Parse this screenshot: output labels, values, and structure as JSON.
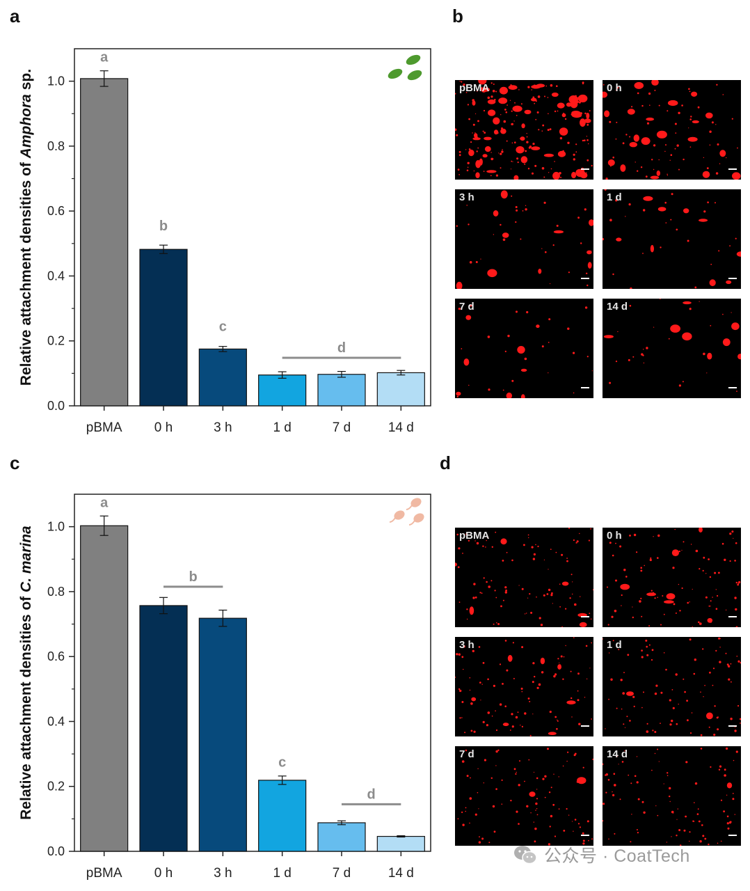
{
  "panels": {
    "a": "a",
    "b": "b",
    "c": "c",
    "d": "d"
  },
  "colors": {
    "pBMA": "#808080",
    "0 h": "#042f54",
    "3 h": "#074a7c",
    "1 d": "#12a5e0",
    "7 d": "#66bdee",
    "14 d": "#b3ddf5",
    "sig_label": "#8c8c8c",
    "cell_red": "#ff1a1a"
  },
  "chart_data": [
    {
      "type": "bar",
      "panel": "a",
      "categories": [
        "pBMA",
        "0 h",
        "3 h",
        "1 d",
        "7 d",
        "14 d"
      ],
      "values": [
        1.008,
        0.482,
        0.175,
        0.095,
        0.097,
        0.102
      ],
      "errors": [
        0.024,
        0.013,
        0.008,
        0.01,
        0.009,
        0.007
      ],
      "ylabel_prefix": "Relative attachment densities of ",
      "ylabel_species": "Amphora",
      "ylabel_suffix": " sp.",
      "ylim": [
        0,
        1.1
      ],
      "yticks": [
        "0.0",
        "0.2",
        "0.4",
        "0.6",
        "0.8",
        "1.0"
      ],
      "significance": [
        {
          "label": "a",
          "bars": [
            0
          ],
          "y": 1.06,
          "line": false
        },
        {
          "label": "b",
          "bars": [
            1
          ],
          "y": 0.54,
          "line": false
        },
        {
          "label": "c",
          "bars": [
            2
          ],
          "y": 0.23,
          "line": false
        },
        {
          "label": "d",
          "bars": [
            3,
            5
          ],
          "y": 0.148,
          "line": true
        }
      ],
      "icon": "diatom-icon"
    },
    {
      "type": "bar",
      "panel": "c",
      "categories": [
        "pBMA",
        "0 h",
        "3 h",
        "1 d",
        "7 d",
        "14 d"
      ],
      "values": [
        1.003,
        0.757,
        0.718,
        0.219,
        0.088,
        0.046
      ],
      "errors": [
        0.03,
        0.025,
        0.025,
        0.013,
        0.006,
        0.002
      ],
      "ylabel_prefix": "Relative attachment densities of ",
      "ylabel_species": "C. marina",
      "ylabel_suffix": "",
      "ylim": [
        0,
        1.1
      ],
      "yticks": [
        "0.0",
        "0.2",
        "0.4",
        "0.6",
        "0.8",
        "1.0"
      ],
      "significance": [
        {
          "label": "a",
          "bars": [
            0
          ],
          "y": 1.06,
          "line": false
        },
        {
          "label": "b",
          "bars": [
            1,
            2
          ],
          "y": 0.815,
          "line": true
        },
        {
          "label": "c",
          "bars": [
            3
          ],
          "y": 0.26,
          "line": false
        },
        {
          "label": "d",
          "bars": [
            4,
            5
          ],
          "y": 0.145,
          "line": true
        }
      ],
      "icon": "flagellate-icon"
    }
  ],
  "micrographs_b": [
    "pBMA",
    "0 h",
    "3 h",
    "1 d",
    "7 d",
    "14 d"
  ],
  "micrographs_d": [
    "pBMA",
    "0 h",
    "3 h",
    "1 d",
    "7 d",
    "14 d"
  ],
  "watermark": "公众号 · CoatTech"
}
